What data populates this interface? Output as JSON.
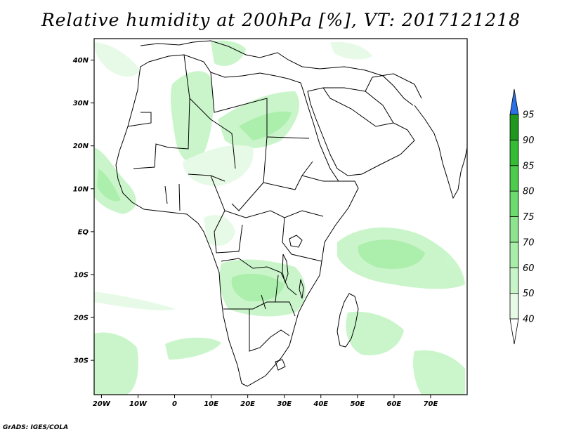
{
  "title": "Relative humidity at 200hPa [%], VT: 2017121218",
  "credit": "GrADS: IGES/COLA",
  "map": {
    "lon_range": [
      -22,
      80
    ],
    "lat_range": [
      -38,
      45
    ],
    "lon_ticks": [
      {
        "value": -20,
        "label": "20W"
      },
      {
        "value": -10,
        "label": "10W"
      },
      {
        "value": 0,
        "label": "0"
      },
      {
        "value": 10,
        "label": "10E"
      },
      {
        "value": 20,
        "label": "20E"
      },
      {
        "value": 30,
        "label": "30E"
      },
      {
        "value": 40,
        "label": "40E"
      },
      {
        "value": 50,
        "label": "50E"
      },
      {
        "value": 60,
        "label": "60E"
      },
      {
        "value": 70,
        "label": "70E"
      }
    ],
    "lat_ticks": [
      {
        "value": 40,
        "label": "40N"
      },
      {
        "value": 30,
        "label": "30N"
      },
      {
        "value": 20,
        "label": "20N"
      },
      {
        "value": 10,
        "label": "10N"
      },
      {
        "value": 0,
        "label": "EQ"
      },
      {
        "value": -10,
        "label": "10S"
      },
      {
        "value": -20,
        "label": "20S"
      },
      {
        "value": -30,
        "label": "30S"
      }
    ]
  },
  "colorbar": {
    "levels": [
      "40",
      "50",
      "60",
      "70",
      "75",
      "80",
      "85",
      "90",
      "95"
    ],
    "colors": [
      "#e6fae6",
      "#c8f5c8",
      "#a8eea8",
      "#8ee48e",
      "#6cda6c",
      "#4ccc4c",
      "#34bc34",
      "#209820"
    ],
    "upper_color": "#2a6fe6",
    "lower_color": "#ffffff"
  }
}
